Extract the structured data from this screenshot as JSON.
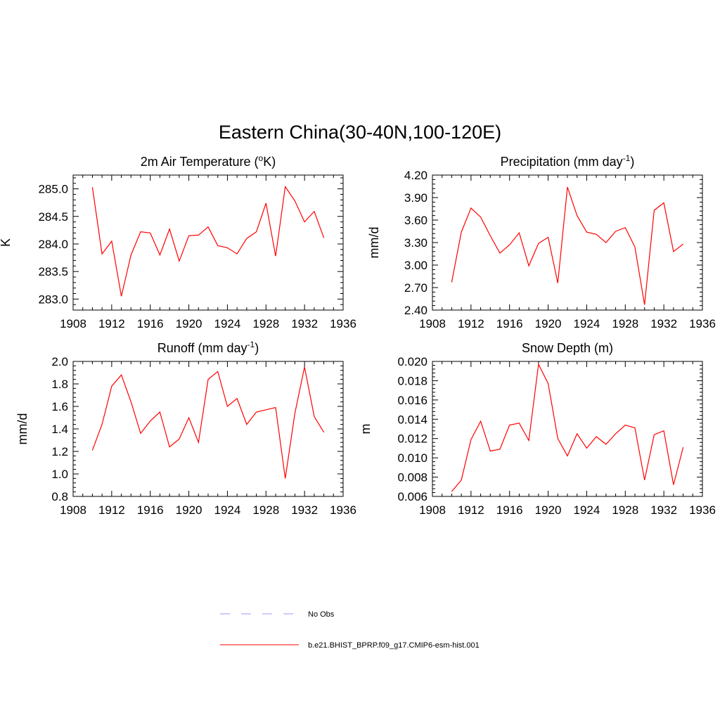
{
  "figure": {
    "title": "Eastern China(30-40N,100-120E)"
  },
  "legend": {
    "entries": [
      {
        "label": "No Obs",
        "color": "#9999ff",
        "style": "dashed"
      },
      {
        "label": "b.e21.BHIST_BPRP.f09_g17.CMIP6-esm-hist.001",
        "color": "#ff0000",
        "style": "solid"
      }
    ]
  },
  "chart_data": [
    {
      "type": "line",
      "title": "2m Air Temperature (",
      "title_sup": "o",
      "title_tail": "K)",
      "xlabel": "",
      "ylabel": "K",
      "xlim": [
        1908,
        1936
      ],
      "ylim": [
        282.8,
        285.25
      ],
      "xticks": [
        1908,
        1912,
        1916,
        1920,
        1924,
        1928,
        1932,
        1936
      ],
      "xtick_labels": [
        "1908",
        "1912",
        "1916",
        "1920",
        "1924",
        "1928",
        "1932",
        "1936"
      ],
      "yticks": [
        283.0,
        283.5,
        284.0,
        284.5,
        285.0
      ],
      "ytick_labels": [
        "283.0",
        "283.5",
        "284.0",
        "284.5",
        "285.0"
      ],
      "series": [
        {
          "color": "#ff0000",
          "x": [
            1910,
            1911,
            1912,
            1913,
            1914,
            1915,
            1916,
            1917,
            1918,
            1919,
            1920,
            1921,
            1922,
            1923,
            1924,
            1925,
            1926,
            1927,
            1928,
            1929,
            1930,
            1931,
            1932,
            1933,
            1934
          ],
          "y": [
            285.03,
            283.82,
            284.05,
            283.05,
            283.8,
            284.22,
            284.2,
            283.8,
            284.27,
            283.69,
            284.15,
            284.16,
            284.31,
            283.97,
            283.93,
            283.82,
            284.1,
            284.22,
            284.74,
            283.78,
            285.04,
            284.78,
            284.4,
            284.59,
            284.11
          ]
        }
      ]
    },
    {
      "type": "line",
      "title": "Precipitation (mm day",
      "title_sup": "-1",
      "title_tail": ")",
      "xlabel": "",
      "ylabel": "mm/d",
      "xlim": [
        1908,
        1936
      ],
      "ylim": [
        2.4,
        4.2
      ],
      "xticks": [
        1908,
        1912,
        1916,
        1920,
        1924,
        1928,
        1932,
        1936
      ],
      "xtick_labels": [
        "1908",
        "1912",
        "1916",
        "1920",
        "1924",
        "1928",
        "1932",
        "1936"
      ],
      "yticks": [
        2.4,
        2.7,
        3.0,
        3.3,
        3.6,
        3.9,
        4.2
      ],
      "ytick_labels": [
        "2.40",
        "2.70",
        "3.00",
        "3.30",
        "3.60",
        "3.90",
        "4.20"
      ],
      "series": [
        {
          "color": "#ff0000",
          "x": [
            1910,
            1911,
            1912,
            1913,
            1914,
            1915,
            1916,
            1917,
            1918,
            1919,
            1920,
            1921,
            1922,
            1923,
            1924,
            1925,
            1926,
            1927,
            1928,
            1929,
            1930,
            1931,
            1932,
            1933,
            1934
          ],
          "y": [
            2.77,
            3.44,
            3.76,
            3.64,
            3.39,
            3.16,
            3.27,
            3.43,
            2.99,
            3.29,
            3.37,
            2.76,
            4.04,
            3.66,
            3.44,
            3.41,
            3.3,
            3.45,
            3.5,
            3.24,
            2.47,
            3.73,
            3.83,
            3.18,
            3.28
          ]
        }
      ]
    },
    {
      "type": "line",
      "title": "Runoff (mm day",
      "title_sup": "-1",
      "title_tail": ")",
      "xlabel": "",
      "ylabel": "mm/d",
      "xlim": [
        1908,
        1936
      ],
      "ylim": [
        0.8,
        2.0
      ],
      "xticks": [
        1908,
        1912,
        1916,
        1920,
        1924,
        1928,
        1932,
        1936
      ],
      "xtick_labels": [
        "1908",
        "1912",
        "1916",
        "1920",
        "1924",
        "1928",
        "1932",
        "1936"
      ],
      "yticks": [
        0.8,
        1.0,
        1.2,
        1.4,
        1.6,
        1.8,
        2.0
      ],
      "ytick_labels": [
        "0.8",
        "1.0",
        "1.2",
        "1.4",
        "1.6",
        "1.8",
        "2.0"
      ],
      "series": [
        {
          "color": "#ff0000",
          "x": [
            1910,
            1911,
            1912,
            1913,
            1914,
            1915,
            1916,
            1917,
            1918,
            1919,
            1920,
            1921,
            1922,
            1923,
            1924,
            1925,
            1926,
            1927,
            1928,
            1929,
            1930,
            1931,
            1932,
            1933,
            1934
          ],
          "y": [
            1.21,
            1.44,
            1.78,
            1.88,
            1.64,
            1.36,
            1.47,
            1.55,
            1.24,
            1.31,
            1.5,
            1.28,
            1.84,
            1.91,
            1.6,
            1.67,
            1.44,
            1.55,
            1.57,
            1.59,
            0.96,
            1.54,
            1.95,
            1.51,
            1.37
          ]
        }
      ]
    },
    {
      "type": "line",
      "title": "Snow Depth (m)",
      "title_sup": "",
      "title_tail": "",
      "xlabel": "",
      "ylabel": "m",
      "xlim": [
        1908,
        1936
      ],
      "ylim": [
        0.006,
        0.02
      ],
      "xticks": [
        1908,
        1912,
        1916,
        1920,
        1924,
        1928,
        1932,
        1936
      ],
      "xtick_labels": [
        "1908",
        "1912",
        "1916",
        "1920",
        "1924",
        "1928",
        "1932",
        "1936"
      ],
      "yticks": [
        0.006,
        0.008,
        0.01,
        0.012,
        0.014,
        0.016,
        0.018,
        0.02
      ],
      "ytick_labels": [
        "0.006",
        "0.008",
        "0.010",
        "0.012",
        "0.014",
        "0.016",
        "0.018",
        "0.020"
      ],
      "series": [
        {
          "color": "#ff0000",
          "x": [
            1910,
            1911,
            1912,
            1913,
            1914,
            1915,
            1916,
            1917,
            1918,
            1919,
            1920,
            1921,
            1922,
            1923,
            1924,
            1925,
            1926,
            1927,
            1928,
            1929,
            1930,
            1931,
            1932,
            1933,
            1934
          ],
          "y": [
            0.0065,
            0.0077,
            0.0119,
            0.0138,
            0.0107,
            0.0109,
            0.0134,
            0.0136,
            0.0118,
            0.0197,
            0.0177,
            0.012,
            0.0102,
            0.0125,
            0.011,
            0.0122,
            0.0114,
            0.0125,
            0.0134,
            0.0131,
            0.0077,
            0.0124,
            0.0128,
            0.0072,
            0.0111
          ]
        }
      ]
    }
  ]
}
